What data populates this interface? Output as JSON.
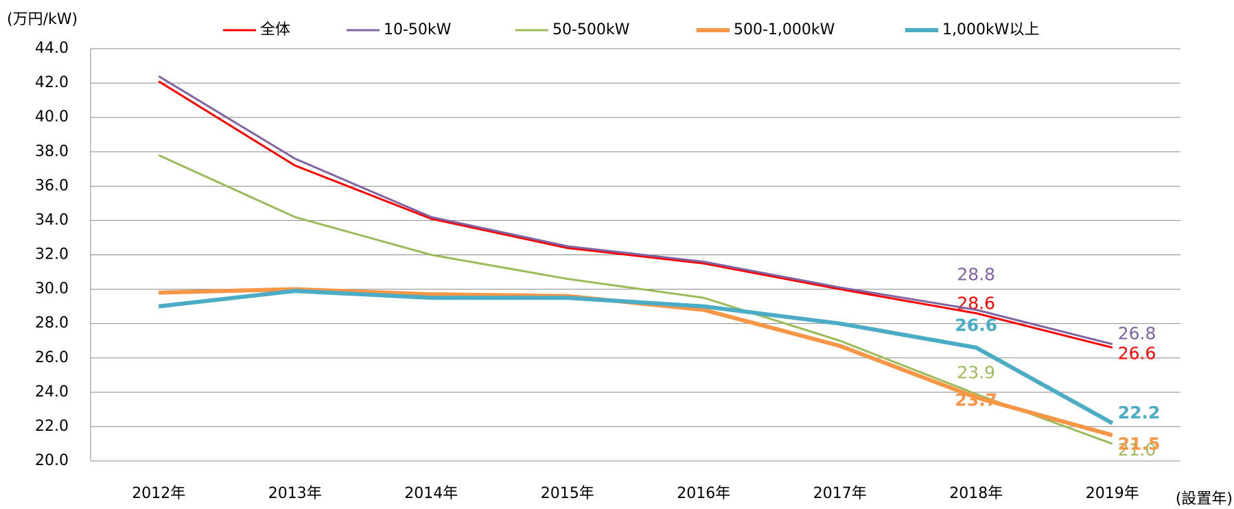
{
  "chart_data": {
    "type": "line",
    "y_label": "(万円/kW)",
    "x_label": "(設置年)",
    "categories": [
      "2012年",
      "2013年",
      "2014年",
      "2015年",
      "2016年",
      "2017年",
      "2018年",
      "2019年"
    ],
    "ylim": [
      20,
      44
    ],
    "yticks": [
      {
        "value": 20,
        "label": "20.0"
      },
      {
        "value": 22,
        "label": "22.0"
      },
      {
        "value": 24,
        "label": "24.0"
      },
      {
        "value": 26,
        "label": "26.0"
      },
      {
        "value": 28,
        "label": "28.0"
      },
      {
        "value": 30,
        "label": "30.0"
      },
      {
        "value": 32,
        "label": "32.0"
      },
      {
        "value": 34,
        "label": "34.0"
      },
      {
        "value": 36,
        "label": "36.0"
      },
      {
        "value": 38,
        "label": "38.0"
      },
      {
        "value": 40,
        "label": "40.0"
      },
      {
        "value": 42,
        "label": "42.0"
      },
      {
        "value": 44,
        "label": "44.0"
      }
    ],
    "grid": true,
    "series": [
      {
        "name": "全体",
        "color": "#ff0000",
        "values": [
          42.1,
          37.2,
          34.1,
          32.4,
          31.5,
          30.0,
          28.6,
          26.6
        ],
        "value_labels": [
          null,
          null,
          null,
          null,
          null,
          null,
          "28.6",
          "26.6"
        ]
      },
      {
        "name": "10-50kW",
        "color": "#8064a2",
        "values": [
          42.4,
          37.6,
          34.2,
          32.5,
          31.6,
          30.1,
          28.8,
          26.8
        ],
        "value_labels": [
          null,
          null,
          null,
          null,
          null,
          null,
          "28.8",
          "26.8"
        ]
      },
      {
        "name": "50-500kW",
        "color": "#9bbb59",
        "values": [
          37.8,
          34.2,
          32.0,
          30.6,
          29.5,
          27.0,
          23.9,
          21.0
        ],
        "value_labels": [
          null,
          null,
          null,
          null,
          null,
          null,
          "23.9",
          "21.0"
        ]
      },
      {
        "name": "500-1,000kW",
        "color": "#f79646",
        "values": [
          29.8,
          30.0,
          29.7,
          29.6,
          28.8,
          26.7,
          23.7,
          21.5
        ],
        "value_labels": [
          null,
          null,
          null,
          null,
          null,
          null,
          "23.7",
          "21.5"
        ]
      },
      {
        "name": "1,000kW以上",
        "color": "#4bacc6",
        "values": [
          29.0,
          29.9,
          29.5,
          29.5,
          29.0,
          28.0,
          26.6,
          22.2
        ],
        "value_labels": [
          null,
          null,
          null,
          null,
          null,
          null,
          "26.6",
          "22.2"
        ]
      }
    ]
  }
}
